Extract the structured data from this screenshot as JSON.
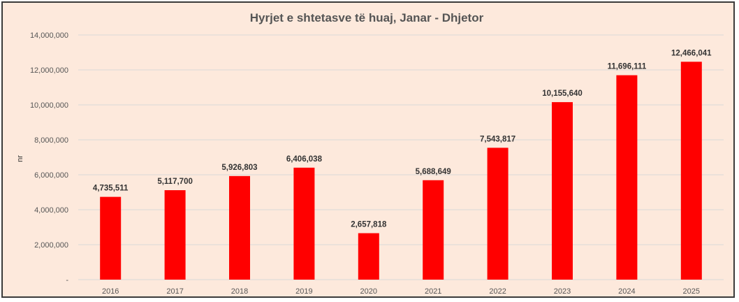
{
  "chart_data": {
    "type": "bar",
    "title": "Hyrjet e shtetasve të huaj, Janar - Dhjetor",
    "xlabel": "",
    "ylabel": "nr",
    "categories": [
      "2016",
      "2017",
      "2018",
      "2019",
      "2020",
      "2021",
      "2022",
      "2023",
      "2024",
      "2025"
    ],
    "values": [
      4735511,
      5117700,
      5926803,
      6406038,
      2657818,
      5688649,
      7543817,
      10155640,
      11696111,
      12466041
    ],
    "data_labels": [
      "4,735,511",
      "5,117,700",
      "5,926,803",
      "6,406,038",
      "2,657,818",
      "5,688,649",
      "7,543,817",
      "10,155,640",
      "11,696,111",
      "12,466,041"
    ],
    "ylim": [
      0,
      14000000
    ],
    "yticks": [
      0,
      2000000,
      4000000,
      6000000,
      8000000,
      10000000,
      12000000,
      14000000
    ],
    "ytick_labels": [
      "-",
      "2,000,000",
      "4,000,000",
      "6,000,000",
      "8,000,000",
      "10,000,000",
      "12,000,000",
      "14,000,000"
    ],
    "grid": true,
    "legend": "none",
    "colors": {
      "bar": "#ff0000",
      "background": "#fde9dc",
      "grid": "#d9d9d9",
      "text": "#555555"
    }
  }
}
